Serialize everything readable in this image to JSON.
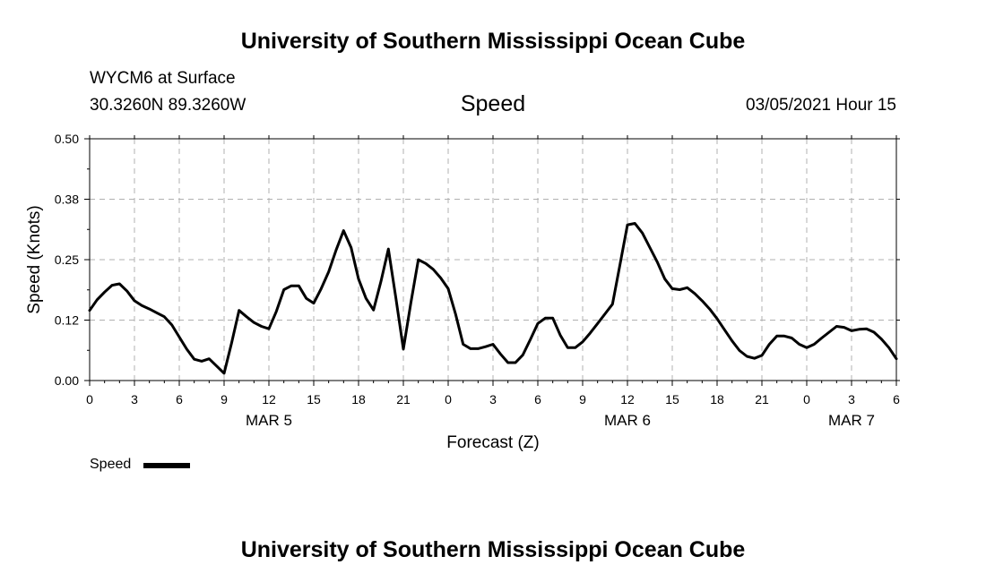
{
  "header": {
    "title_top": "University of Southern Mississippi Ocean Cube",
    "station": "WYCM6 at Surface",
    "coords": "30.3260N 89.3260W",
    "variable": "Speed",
    "datetime": "03/05/2021 Hour 15",
    "title_bottom": "University of Southern Mississippi Ocean Cube"
  },
  "legend": {
    "label": "Speed"
  },
  "chart_data": {
    "type": "line",
    "xlabel": "Forecast (Z)",
    "ylabel": "Speed (Knots)",
    "ylim": [
      0,
      0.5
    ],
    "xlim": [
      0,
      54
    ],
    "yticks": [
      "0.00",
      "0.12",
      "0.25",
      "0.38",
      "0.50"
    ],
    "ytick_values": [
      0,
      0.125,
      0.25,
      0.375,
      0.5
    ],
    "xticks": [
      "0",
      "3",
      "6",
      "9",
      "12",
      "15",
      "18",
      "21",
      "0",
      "3",
      "6",
      "9",
      "12",
      "15",
      "18",
      "21",
      "0",
      "3",
      "6"
    ],
    "day_labels": [
      {
        "label": "MAR 5",
        "hour": 12
      },
      {
        "label": "MAR 6",
        "hour": 36
      },
      {
        "label": "MAR 7",
        "hour": 51
      }
    ],
    "grid": true,
    "series": [
      {
        "name": "Speed",
        "color": "#000000",
        "x": [
          0,
          0.5,
          1,
          1.5,
          2,
          2.5,
          3,
          3.5,
          4,
          4.5,
          5,
          5.5,
          6,
          6.5,
          7,
          7.5,
          8,
          8.5,
          9,
          9.5,
          10,
          10.5,
          11,
          11.5,
          12,
          12.5,
          13,
          13.5,
          14,
          14.5,
          15,
          15.5,
          16,
          16.5,
          17,
          17.5,
          18,
          18.5,
          19,
          19.5,
          20,
          20.5,
          21,
          21.5,
          22,
          22.5,
          23,
          23.5,
          24,
          24.5,
          25,
          25.5,
          26,
          26.5,
          27,
          27.5,
          28,
          28.5,
          29,
          29.5,
          30,
          30.5,
          31,
          31.5,
          32,
          32.5,
          33,
          33.5,
          34,
          34.5,
          35,
          35.5,
          36,
          36.5,
          37,
          37.5,
          38,
          38.5,
          39,
          39.5,
          40,
          40.5,
          41,
          41.5,
          42,
          42.5,
          43,
          43.5,
          44,
          44.5,
          45,
          45.5,
          46,
          46.5,
          47,
          47.5,
          48,
          48.5,
          49,
          49.5,
          50,
          50.5,
          51,
          51.5,
          52,
          52.5,
          53,
          53.5,
          54
        ],
        "values": [
          0.145,
          0.167,
          0.183,
          0.197,
          0.2,
          0.185,
          0.165,
          0.155,
          0.148,
          0.14,
          0.132,
          0.115,
          0.09,
          0.065,
          0.044,
          0.04,
          0.045,
          0.03,
          0.015,
          0.077,
          0.145,
          0.132,
          0.12,
          0.112,
          0.107,
          0.143,
          0.188,
          0.196,
          0.196,
          0.17,
          0.16,
          0.19,
          0.225,
          0.27,
          0.31,
          0.275,
          0.21,
          0.17,
          0.146,
          0.205,
          0.272,
          0.17,
          0.065,
          0.16,
          0.25,
          0.242,
          0.23,
          0.212,
          0.19,
          0.137,
          0.075,
          0.066,
          0.066,
          0.07,
          0.075,
          0.055,
          0.037,
          0.037,
          0.053,
          0.085,
          0.118,
          0.129,
          0.129,
          0.094,
          0.068,
          0.068,
          0.08,
          0.098,
          0.118,
          0.138,
          0.158,
          0.24,
          0.322,
          0.325,
          0.305,
          0.275,
          0.245,
          0.21,
          0.19,
          0.188,
          0.192,
          0.18,
          0.165,
          0.148,
          0.128,
          0.105,
          0.082,
          0.062,
          0.05,
          0.046,
          0.052,
          0.075,
          0.092,
          0.092,
          0.088,
          0.075,
          0.068,
          0.075,
          0.088,
          0.1,
          0.112,
          0.11,
          0.103,
          0.106,
          0.107,
          0.1,
          0.086,
          0.068,
          0.045
        ]
      }
    ]
  }
}
